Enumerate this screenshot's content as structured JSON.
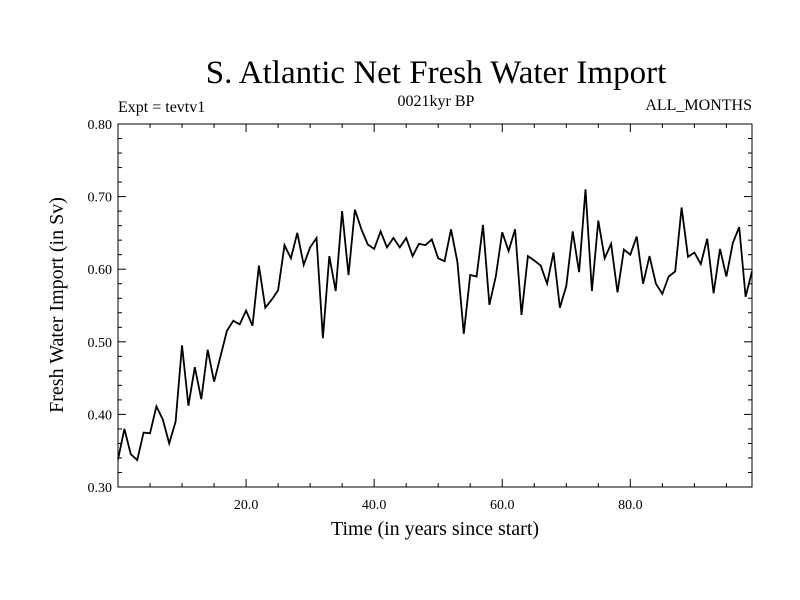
{
  "chart_data": {
    "type": "line",
    "title": "S. Atlantic Net Fresh Water Import",
    "subtitle_left": "Expt = tevtv1",
    "subtitle_center": "0021kyr BP",
    "subtitle_right": "ALL_MONTHS",
    "xlabel": "Time (in years since start)",
    "ylabel": "Fresh Water Import (in Sv)",
    "xlim": [
      0,
      99
    ],
    "ylim": [
      0.3,
      0.8
    ],
    "xticks": [
      20,
      40,
      60,
      80
    ],
    "xtick_labels": [
      "20.0",
      "40.0",
      "60.0",
      "80.0"
    ],
    "yticks": [
      0.3,
      0.4,
      0.5,
      0.6,
      0.7,
      0.8
    ],
    "ytick_labels": [
      "0.30",
      "0.40",
      "0.50",
      "0.60",
      "0.70",
      "0.80"
    ],
    "series": [
      {
        "name": "Fresh Water Import",
        "x": [
          0,
          1,
          2,
          3,
          4,
          5,
          6,
          7,
          8,
          9,
          10,
          11,
          12,
          13,
          14,
          15,
          16,
          17,
          18,
          19,
          20,
          21,
          22,
          23,
          24,
          25,
          26,
          27,
          28,
          29,
          30,
          31,
          32,
          33,
          34,
          35,
          36,
          37,
          38,
          39,
          40,
          41,
          42,
          43,
          44,
          45,
          46,
          47,
          48,
          49,
          50,
          51,
          52,
          53,
          54,
          55,
          56,
          57,
          58,
          59,
          60,
          61,
          62,
          63,
          64,
          65,
          66,
          67,
          68,
          69,
          70,
          71,
          72,
          73,
          74,
          75,
          76,
          77,
          78,
          79,
          80,
          81,
          82,
          83,
          84,
          85,
          86,
          87,
          88,
          89,
          90,
          91,
          92,
          93,
          94,
          95,
          96,
          97,
          98,
          99
        ],
        "values": [
          0.338,
          0.38,
          0.345,
          0.337,
          0.375,
          0.374,
          0.411,
          0.393,
          0.36,
          0.39,
          0.495,
          0.412,
          0.465,
          0.421,
          0.489,
          0.445,
          0.48,
          0.515,
          0.529,
          0.524,
          0.543,
          0.522,
          0.605,
          0.547,
          0.558,
          0.571,
          0.633,
          0.615,
          0.65,
          0.606,
          0.63,
          0.643,
          0.505,
          0.618,
          0.57,
          0.68,
          0.592,
          0.682,
          0.655,
          0.634,
          0.628,
          0.652,
          0.63,
          0.643,
          0.63,
          0.643,
          0.618,
          0.635,
          0.633,
          0.641,
          0.615,
          0.611,
          0.655,
          0.61,
          0.511,
          0.592,
          0.59,
          0.661,
          0.551,
          0.59,
          0.651,
          0.625,
          0.655,
          0.537,
          0.618,
          0.612,
          0.605,
          0.58,
          0.623,
          0.547,
          0.577,
          0.652,
          0.596,
          0.71,
          0.57,
          0.667,
          0.615,
          0.635,
          0.568,
          0.627,
          0.62,
          0.645,
          0.58,
          0.618,
          0.58,
          0.566,
          0.59,
          0.597,
          0.685,
          0.617,
          0.623,
          0.607,
          0.642,
          0.567,
          0.628,
          0.59,
          0.636,
          0.658,
          0.562,
          0.597
        ]
      }
    ]
  }
}
